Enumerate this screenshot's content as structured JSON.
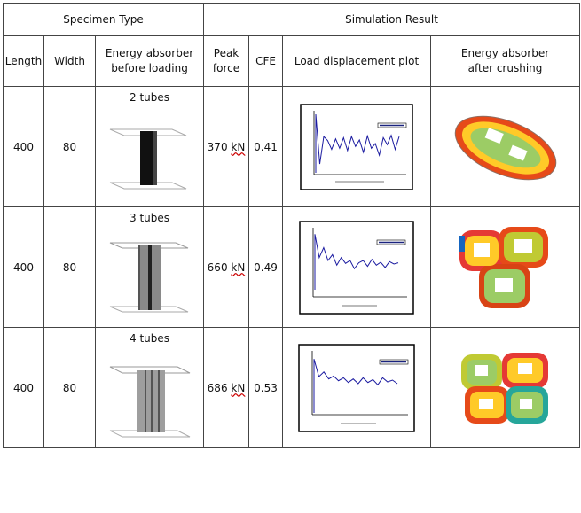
{
  "table": {
    "group_headers": {
      "specimen": "Specimen Type",
      "simulation": "Simulation Result"
    },
    "columns": {
      "length": "Length",
      "width": "Width",
      "before_l1": "Energy absorber",
      "before_l2": "before loading",
      "peak_l1": "Peak",
      "peak_l2": "force",
      "cfe": "CFE",
      "plot": "Load displacement plot",
      "after_l1": "Energy absorber",
      "after_l2": "after crushing"
    },
    "rows": [
      {
        "length": "400",
        "width": "80",
        "tubes": "2 tubes",
        "peak_value": "370",
        "peak_unit": "kN",
        "cfe": "0.41"
      },
      {
        "length": "400",
        "width": "80",
        "tubes": "3 tubes",
        "peak_value": "660",
        "peak_unit": "kN",
        "cfe": "0.49"
      },
      {
        "length": "400",
        "width": "80",
        "tubes": "4 tubes",
        "peak_value": "686",
        "peak_unit": "kN",
        "cfe": "0.53"
      }
    ]
  },
  "plots": [
    {
      "series": [
        1.0,
        0.15,
        0.62,
        0.55,
        0.4,
        0.58,
        0.42,
        0.6,
        0.38,
        0.62,
        0.45,
        0.56,
        0.35,
        0.63,
        0.42,
        0.5,
        0.3,
        0.6,
        0.48,
        0.64,
        0.4,
        0.62
      ]
    },
    {
      "series": [
        0.95,
        0.55,
        0.72,
        0.5,
        0.6,
        0.42,
        0.55,
        0.45,
        0.5,
        0.36,
        0.46,
        0.5,
        0.4,
        0.52,
        0.42,
        0.47,
        0.38,
        0.48,
        0.44,
        0.46
      ]
    },
    {
      "series": [
        0.92,
        0.62,
        0.7,
        0.58,
        0.63,
        0.55,
        0.6,
        0.52,
        0.58,
        0.5,
        0.6,
        0.52,
        0.57,
        0.48,
        0.6,
        0.53,
        0.56,
        0.5
      ]
    }
  ]
}
